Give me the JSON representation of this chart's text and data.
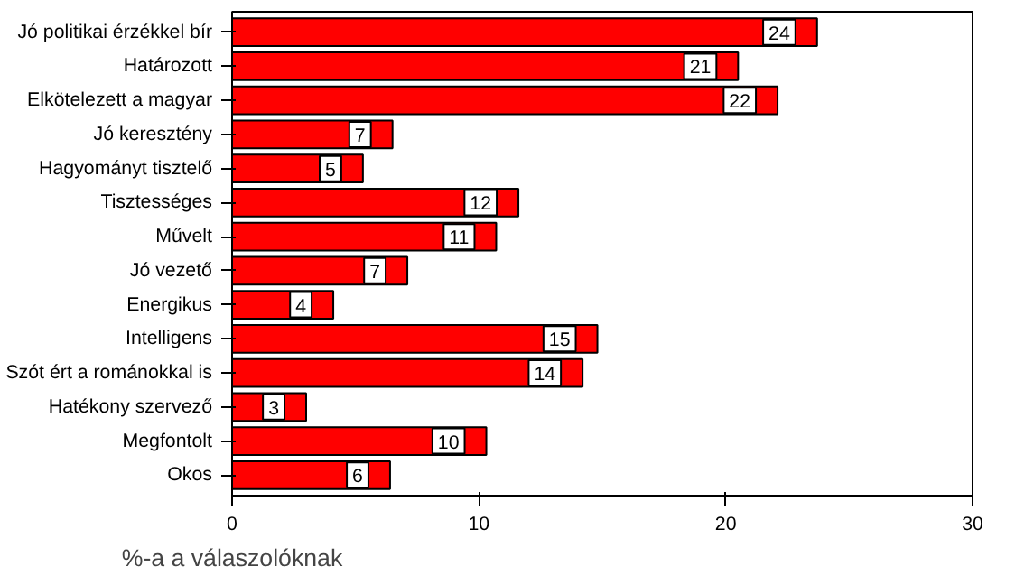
{
  "chart_data": {
    "type": "bar",
    "orientation": "horizontal",
    "xlabel": "%-a a válaszolóknak",
    "categories": [
      "Jó politikai érzékkel bír",
      "Határozott",
      "Elkötelezett a magyar",
      "Jó keresztény",
      "Hagyományt tisztelő",
      "Tisztességes",
      "Művelt",
      "Jó vezető",
      "Energikus",
      "Intelligens",
      "Szót ért a románokkal is",
      "Hatékony szervező",
      "Megfontolt",
      "Okos"
    ],
    "values": [
      23.7,
      20.5,
      22.1,
      6.5,
      5.3,
      11.6,
      10.7,
      7.1,
      4.1,
      14.8,
      14.2,
      3.0,
      10.3,
      6.4
    ],
    "value_labels": [
      "24",
      "21",
      "22",
      "7",
      "5",
      "12",
      "11",
      "7",
      "4",
      "15",
      "14",
      "3",
      "10",
      "6"
    ],
    "color": "#ff0000",
    "xlim": [
      0,
      30
    ],
    "xticks": [
      0,
      10,
      20,
      30
    ],
    "grid": false
  }
}
